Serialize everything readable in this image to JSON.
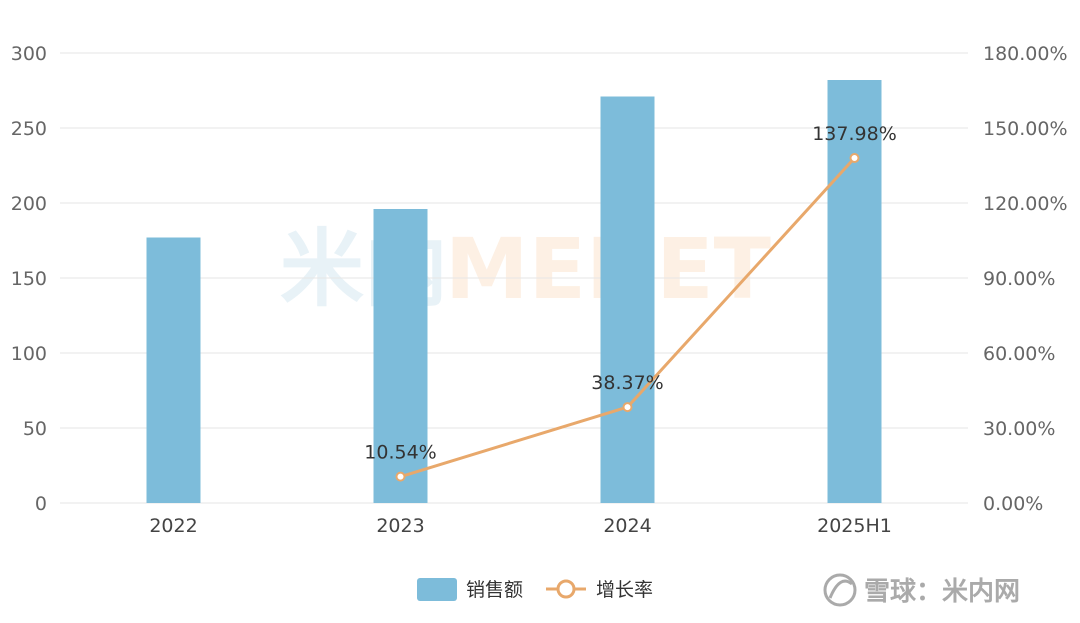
{
  "colors": {
    "bar": "#7dbcda",
    "line": "#e8a86b",
    "grid": "#e6e6e6",
    "wm_blue": "#e8f2f7",
    "wm_orange": "#fdf0e4"
  },
  "watermark": {
    "cn": "米内",
    "en": "MENET"
  },
  "legend": {
    "series1": {
      "label": "销售额",
      "icon": "bar-swatch-icon"
    },
    "series2": {
      "label": "增长率",
      "icon": "line-circle-icon"
    }
  },
  "source_mark": {
    "icon": "snowball-logo-icon",
    "text": "雪球：米内网"
  },
  "chart_data": {
    "type": "bar",
    "categories": [
      "2022",
      "2023",
      "2024",
      "2025H1"
    ],
    "series": [
      {
        "name": "销售额",
        "type": "bar",
        "axis": "left",
        "values": [
          177,
          196,
          271,
          282
        ]
      },
      {
        "name": "增长率",
        "type": "line",
        "axis": "right",
        "values": [
          null,
          10.54,
          38.37,
          137.98
        ],
        "labels": [
          null,
          "10.54%",
          "38.37%",
          "137.98%"
        ]
      }
    ],
    "y_left": {
      "min": 0,
      "max": 300,
      "ticks": [
        "0",
        "50",
        "100",
        "150",
        "200",
        "250",
        "300"
      ]
    },
    "y_right": {
      "min": 0,
      "max": 180,
      "ticks": [
        "0.00%",
        "30.00%",
        "60.00%",
        "90.00%",
        "120.00%",
        "150.00%",
        "180.00%"
      ]
    },
    "grid": true,
    "legend_position": "bottom"
  }
}
